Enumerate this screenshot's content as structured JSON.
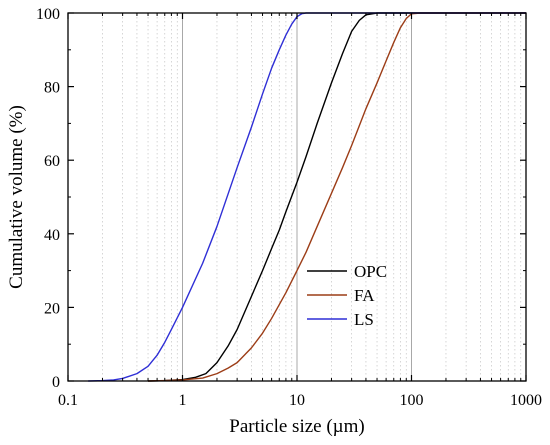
{
  "chart_data": {
    "type": "line",
    "xlabel": "Particle size (µm)",
    "ylabel": "Cumulative volume (%)",
    "xscale": "log",
    "xlim": [
      0.1,
      1000
    ],
    "ylim": [
      0,
      100
    ],
    "xticks": [
      0.1,
      1,
      10,
      100,
      1000
    ],
    "xtick_labels": [
      "0.1",
      "1",
      "10",
      "100",
      "1000"
    ],
    "yticks": [
      0,
      20,
      40,
      60,
      80,
      100
    ],
    "ytick_labels": [
      "0",
      "20",
      "40",
      "60",
      "80",
      "100"
    ],
    "grid": {
      "major_x": true,
      "minor_x": true,
      "y": false
    },
    "legend_position": "bottom-right",
    "series": [
      {
        "name": "OPC",
        "color": "#000000",
        "x": [
          0.5,
          0.7,
          1,
          1.3,
          1.6,
          2,
          2.5,
          3,
          4,
          5,
          6,
          7,
          8,
          10,
          12,
          15,
          20,
          25,
          30,
          35,
          40,
          50,
          100,
          1000
        ],
        "y": [
          0,
          0.1,
          0.4,
          1,
          2,
          5,
          9.5,
          14,
          23,
          30,
          36,
          41,
          46,
          54,
          61,
          70,
          81,
          89,
          95,
          98,
          99.5,
          100,
          100,
          100
        ]
      },
      {
        "name": "FA",
        "color": "#9c3d17",
        "x": [
          0.5,
          0.7,
          1,
          1.5,
          2,
          2.5,
          3,
          4,
          5,
          6,
          8,
          10,
          12,
          15,
          20,
          25,
          30,
          40,
          50,
          60,
          70,
          80,
          90,
          100,
          120,
          1000
        ],
        "y": [
          0,
          0.1,
          0.3,
          0.8,
          2,
          3.5,
          5,
          9,
          13,
          17,
          24,
          30,
          35,
          42,
          51,
          58,
          64,
          74,
          81,
          87,
          92,
          96,
          98.5,
          99.8,
          100,
          100
        ]
      },
      {
        "name": "LS",
        "color": "#2f2fd6",
        "x": [
          0.15,
          0.2,
          0.25,
          0.3,
          0.4,
          0.5,
          0.6,
          0.7,
          0.8,
          1,
          1.5,
          2,
          3,
          4,
          5,
          6,
          7,
          8,
          9,
          10,
          11,
          12,
          13,
          100,
          1000
        ],
        "y": [
          0,
          0.1,
          0.3,
          0.7,
          2,
          4,
          7,
          10.5,
          14,
          20,
          32,
          42,
          58,
          69,
          78,
          85,
          90,
          94,
          97,
          99,
          99.8,
          100,
          100,
          100,
          100
        ]
      }
    ]
  }
}
